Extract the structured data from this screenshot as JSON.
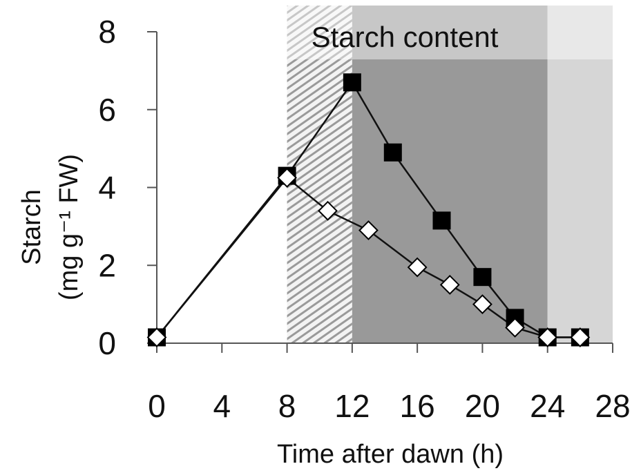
{
  "chart_data": {
    "type": "line",
    "title": "Starch content",
    "xlabel": "Time after dawn (h)",
    "ylabel_line1": "Starch",
    "ylabel_line2": "(mg g⁻¹ FW)",
    "xlim": [
      0,
      28
    ],
    "ylim": [
      0,
      8
    ],
    "x_ticks": [
      0,
      4,
      8,
      12,
      16,
      20,
      24,
      28
    ],
    "y_ticks": [
      0,
      2,
      4,
      6,
      8
    ],
    "shaded_regions": [
      {
        "from": 8,
        "to": 12,
        "style": "hatched"
      },
      {
        "from": 12,
        "to": 24,
        "style": "dark-grey"
      },
      {
        "from": 24,
        "to": 28,
        "style": "light-grey"
      }
    ],
    "series": [
      {
        "marker": "square",
        "color": "#000000",
        "x": [
          0,
          8,
          12,
          14.5,
          17.5,
          20,
          22,
          24,
          26
        ],
        "y": [
          0.15,
          4.3,
          6.7,
          4.9,
          3.15,
          1.7,
          0.65,
          0.15,
          0.15
        ]
      },
      {
        "marker": "diamond",
        "color": "#ffffff",
        "x": [
          0,
          8,
          10.5,
          13,
          16,
          18,
          20,
          22,
          24,
          26
        ],
        "y": [
          0.15,
          4.25,
          3.4,
          2.9,
          1.95,
          1.5,
          1.0,
          0.4,
          0.15,
          0.15
        ]
      }
    ]
  }
}
